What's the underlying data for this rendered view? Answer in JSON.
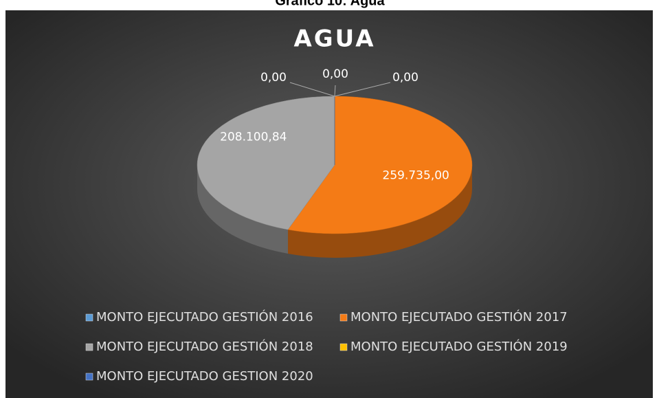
{
  "caption": "Gráfico 10: Agua",
  "chart_data": {
    "type": "pie",
    "title": "AGUA",
    "categories": [
      "MONTO EJECUTADO GESTIÓN 2016",
      "MONTO EJECUTADO GESTIÓN 2017",
      "MONTO EJECUTADO GESTIÓN 2018",
      "MONTO EJECUTADO GESTIÓN 2019",
      "MONTO EJECUTADO GESTION 2020"
    ],
    "values": [
      0,
      259735,
      208100.84,
      0,
      0
    ],
    "value_labels": [
      "0,00",
      "259.735,00",
      "208.100,84",
      "0,00",
      "0,00"
    ],
    "colors": [
      "#5b9bd5",
      "#f47b16",
      "#a5a5a5",
      "#ffc000",
      "#4472c4"
    ]
  }
}
